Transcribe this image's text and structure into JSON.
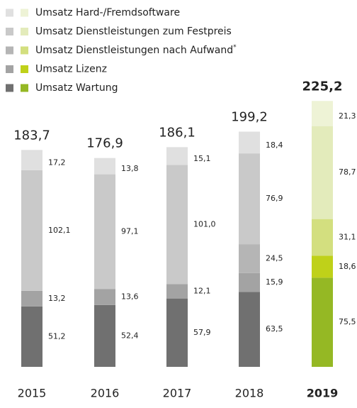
{
  "chart_data": {
    "type": "stacked_bar",
    "categories": [
      "2015",
      "2016",
      "2017",
      "2018",
      "2019"
    ],
    "series": [
      {
        "name": "Umsatz Hard-/Fremdsoftware",
        "color": "#e0e0e0",
        "highlight_color": "#eef3d6",
        "values": [
          17.2,
          13.8,
          15.1,
          18.4,
          21.3
        ],
        "value_labels": [
          "17,2",
          "13,8",
          "15,1",
          "18,4",
          "21,3"
        ]
      },
      {
        "name": "Umsatz Dienstleistungen zum Festpreis",
        "color": "#c9c9c9",
        "highlight_color": "#e3ebbb",
        "values": [
          102.1,
          97.1,
          101.0,
          76.9,
          78.7
        ],
        "value_labels": [
          "102,1",
          "97,1",
          "101,0",
          "76,9",
          "78,7"
        ]
      },
      {
        "name": "Umsatz Dienstleistungen nach Aufwand",
        "footnote_marker": "*",
        "color": "#b5b5b5",
        "highlight_color": "#d3df7f",
        "values": [
          null,
          null,
          null,
          24.5,
          31.1
        ],
        "value_labels": [
          null,
          null,
          null,
          "24,5",
          "31,1"
        ]
      },
      {
        "name": "Umsatz Lizenz",
        "color": "#a3a3a3",
        "highlight_color": "#bfd119",
        "values": [
          13.2,
          13.6,
          12.1,
          15.9,
          18.6
        ],
        "value_labels": [
          "13,2",
          "13,6",
          "12,1",
          "15,9",
          "18,6"
        ]
      },
      {
        "name": "Umsatz Wartung",
        "color": "#707070",
        "highlight_color": "#95b824",
        "values": [
          51.2,
          52.4,
          57.9,
          63.5,
          75.5
        ],
        "value_labels": [
          "51,2",
          "52,4",
          "57,9",
          "63,5",
          "75,5"
        ]
      }
    ],
    "totals": [
      183.7,
      176.9,
      186.1,
      199.2,
      225.2
    ],
    "total_labels": [
      "183,7",
      "176,9",
      "186,1",
      "199,2",
      "225,2"
    ],
    "highlight_index": 4,
    "ylim": [
      0,
      250
    ]
  }
}
